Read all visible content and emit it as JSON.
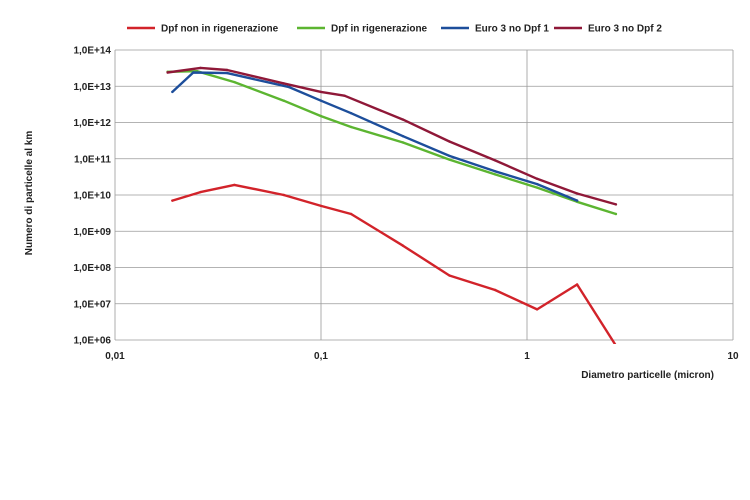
{
  "chart_data": {
    "type": "line",
    "title": "",
    "xlabel": "Diametro particelle (micron)",
    "ylabel": "Numero di particelle al km",
    "x_scale": "log",
    "y_scale": "log",
    "xlim": [
      0.01,
      10
    ],
    "ylim": [
      1000000.0,
      100000000000000.0
    ],
    "x_ticks": [
      {
        "value": 0.01,
        "label": "0,01"
      },
      {
        "value": 0.1,
        "label": "0,1"
      },
      {
        "value": 1,
        "label": "1"
      },
      {
        "value": 10,
        "label": "10"
      }
    ],
    "y_ticks": [
      {
        "value": 100000000000000.0,
        "label": "1,0E+14"
      },
      {
        "value": 10000000000000.0,
        "label": "1,0E+13"
      },
      {
        "value": 1000000000000.0,
        "label": "1,0E+12"
      },
      {
        "value": 100000000000.0,
        "label": "1,0E+11"
      },
      {
        "value": 10000000000.0,
        "label": "1,0E+10"
      },
      {
        "value": 1000000000.0,
        "label": "1,0E+09"
      },
      {
        "value": 100000000.0,
        "label": "1,0E+08"
      },
      {
        "value": 10000000.0,
        "label": "1,0E+07"
      },
      {
        "value": 1000000.0,
        "label": "1,0E+06"
      }
    ],
    "grid": true,
    "legend_position": "top",
    "series": [
      {
        "name": "Dpf non in rigenerazione",
        "color": "#d2232a",
        "x": [
          0.019,
          0.026,
          0.038,
          0.066,
          0.1,
          0.14,
          0.25,
          0.42,
          0.7,
          1.12,
          1.75,
          2.7
        ],
        "y": [
          7000000000.0,
          12000000000.0,
          19000000000.0,
          10000000000.0,
          5000000000.0,
          3000000000.0,
          400000000.0,
          60000000.0,
          24000000.0,
          7000000.0,
          34000000.0,
          700000.0
        ]
      },
      {
        "name": "Dpf in rigenerazione",
        "color": "#5cb531",
        "x": [
          0.018,
          0.025,
          0.038,
          0.066,
          0.1,
          0.14,
          0.25,
          0.42,
          0.7,
          1.12,
          1.75,
          2.7
        ],
        "y": [
          25000000000000.0,
          26000000000000.0,
          13000000000000.0,
          4000000000000.0,
          1500000000000.0,
          750000000000.0,
          280000000000.0,
          95000000000.0,
          37000000000.0,
          16000000000.0,
          6500000000.0,
          3000000000.0
        ]
      },
      {
        "name": "Euro 3 no Dpf 1",
        "color": "#1d4e9b",
        "x": [
          0.019,
          0.024,
          0.035,
          0.07,
          0.1,
          0.14,
          0.25,
          0.42,
          0.7,
          1.12,
          1.75
        ],
        "y": [
          7000000000000.0,
          24000000000000.0,
          23000000000000.0,
          9500000000000.0,
          4000000000000.0,
          1800000000000.0,
          420000000000.0,
          120000000000.0,
          45000000000.0,
          20000000000.0,
          7000000000.0
        ]
      },
      {
        "name": "Euro 3 no Dpf 2",
        "color": "#8f1838",
        "x": [
          0.018,
          0.026,
          0.035,
          0.066,
          0.1,
          0.13,
          0.25,
          0.42,
          0.7,
          1.12,
          1.75,
          2.7
        ],
        "y": [
          24000000000000.0,
          32000000000000.0,
          28000000000000.0,
          12000000000000.0,
          7000000000000.0,
          5500000000000.0,
          1200000000000.0,
          300000000000.0,
          90000000000.0,
          28000000000.0,
          11000000000.0,
          5500000000.0
        ]
      }
    ]
  }
}
